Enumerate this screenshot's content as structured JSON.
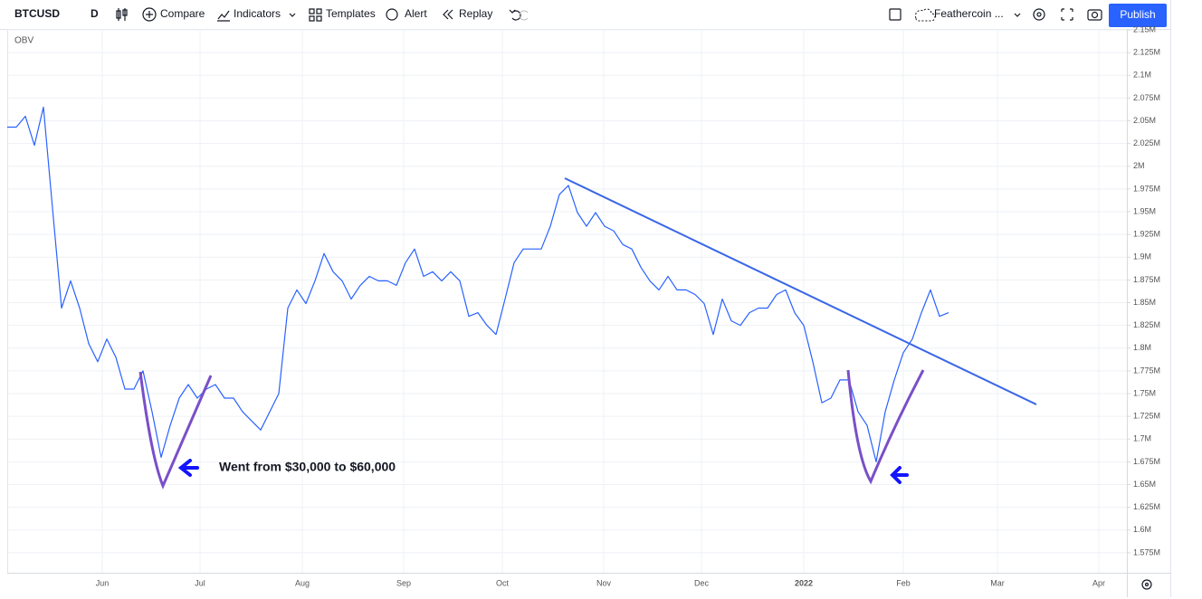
{
  "toolbar": {
    "symbol": "BTCUSD",
    "interval": "D",
    "compare": "Compare",
    "indicators": "Indicators",
    "templates": "Templates",
    "alert": "Alert",
    "replay": "Replay",
    "layout_name": "Feathercoin ...",
    "publish": "Publish"
  },
  "chart_data": {
    "type": "line",
    "title": "OBV",
    "annotation": "Went from $30,000 to $60,000",
    "x_axis_labels": [
      "Jun",
      "Jul",
      "Aug",
      "Sep",
      "Oct",
      "Nov",
      "Dec",
      "2022",
      "Feb",
      "Mar",
      "Apr"
    ],
    "values": [
      2043000,
      2043000,
      2055000,
      2023000,
      2065000,
      1954000,
      1844000,
      1874000,
      1844000,
      1805000,
      1785000,
      1810000,
      1790000,
      1755000,
      1755000,
      1775000,
      1730000,
      1680000,
      1715000,
      1745000,
      1760000,
      1745000,
      1755000,
      1760000,
      1745000,
      1745000,
      1730000,
      1720000,
      1710000,
      1730000,
      1750000,
      1844000,
      1864000,
      1849000,
      1874000,
      1904000,
      1884000,
      1874000,
      1854000,
      1869000,
      1879000,
      1874000,
      1874000,
      1869000,
      1894000,
      1909000,
      1879000,
      1884000,
      1874000,
      1884000,
      1874000,
      1835000,
      1839000,
      1825000,
      1815000,
      1854000,
      1894000,
      1909000,
      1909000,
      1909000,
      1934000,
      1969000,
      1979000,
      1949000,
      1934000,
      1949000,
      1934000,
      1929000,
      1914000,
      1909000,
      1889000,
      1874000,
      1864000,
      1879000,
      1864000,
      1864000,
      1859000,
      1849000,
      1815000,
      1854000,
      1830000,
      1825000,
      1839000,
      1844000,
      1844000,
      1859000,
      1864000,
      1839000,
      1825000,
      1785000,
      1740000,
      1745000,
      1765000,
      1765000,
      1730000,
      1715000,
      1675000,
      1730000,
      1765000,
      1795000,
      1810000,
      1839000,
      1864000,
      1835000,
      1839000
    ],
    "color": "#2962ff",
    "ylim": [
      1553000,
      2151000
    ],
    "yticks": [
      {
        "value": 2150000,
        "label": "2.15M"
      },
      {
        "value": 2125000,
        "label": "2.125M"
      },
      {
        "value": 2100000,
        "label": "2.1M"
      },
      {
        "value": 2075000,
        "label": "2.075M"
      },
      {
        "value": 2050000,
        "label": "2.05M"
      },
      {
        "value": 2025000,
        "label": "2.025M"
      },
      {
        "value": 2000000,
        "label": "2M"
      },
      {
        "value": 1975000,
        "label": "1.975M"
      },
      {
        "value": 1950000,
        "label": "1.95M"
      },
      {
        "value": 1925000,
        "label": "1.925M"
      },
      {
        "value": 1900000,
        "label": "1.9M"
      },
      {
        "value": 1875000,
        "label": "1.875M"
      },
      {
        "value": 1850000,
        "label": "1.85M"
      },
      {
        "value": 1825000,
        "label": "1.825M"
      },
      {
        "value": 1800000,
        "label": "1.8M"
      },
      {
        "value": 1775000,
        "label": "1.775M"
      },
      {
        "value": 1750000,
        "label": "1.75M"
      },
      {
        "value": 1725000,
        "label": "1.725M"
      },
      {
        "value": 1700000,
        "label": "1.7M"
      },
      {
        "value": 1675000,
        "label": "1.675M"
      },
      {
        "value": 1650000,
        "label": "1.65M"
      },
      {
        "value": 1625000,
        "label": "1.625M"
      },
      {
        "value": 1600000,
        "label": "1.6M"
      },
      {
        "value": 1575000,
        "label": "1.575M"
      }
    ],
    "grid": true
  }
}
